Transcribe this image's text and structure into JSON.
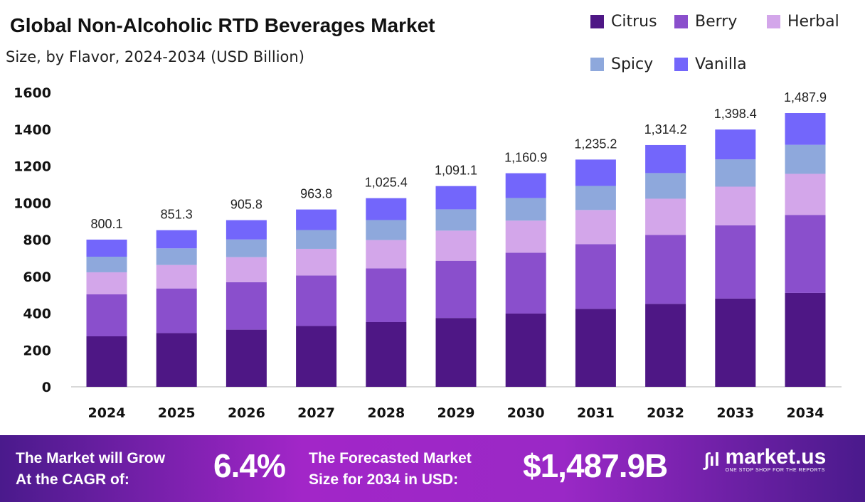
{
  "chart_data": {
    "type": "bar",
    "stacked": true,
    "title": "Global Non-Alcoholic RTD Beverages Market",
    "subtitle": "Size, by Flavor, 2024-2034 (USD Billion)",
    "categories": [
      "2024",
      "2025",
      "2026",
      "2027",
      "2028",
      "2029",
      "2030",
      "2031",
      "2032",
      "2033",
      "2034"
    ],
    "totals": [
      "800.1",
      "851.3",
      "905.8",
      "963.8",
      "1,025.4",
      "1,091.1",
      "1,160.9",
      "1,235.2",
      "1,314.2",
      "1,398.4",
      "1,487.9"
    ],
    "series": [
      {
        "name": "Citrus",
        "color": "#4e1785",
        "values": [
          274.4,
          292.0,
          310.7,
          330.6,
          351.7,
          374.2,
          398.2,
          423.7,
          450.8,
          479.6,
          510.4
        ]
      },
      {
        "name": "Berry",
        "color": "#8a4fcc",
        "values": [
          228.0,
          242.6,
          258.2,
          274.7,
          292.2,
          311.0,
          330.9,
          352.0,
          374.5,
          398.5,
          424.0
        ]
      },
      {
        "name": "Herbal",
        "color": "#d3a6ea",
        "values": [
          120.0,
          127.7,
          135.9,
          144.6,
          153.8,
          163.7,
          174.1,
          185.3,
          197.1,
          209.8,
          223.2
        ]
      },
      {
        "name": "Spicy",
        "color": "#8ea8dc",
        "values": [
          84.8,
          90.2,
          96.0,
          102.2,
          108.7,
          115.7,
          123.1,
          130.9,
          139.3,
          148.2,
          157.7
        ]
      },
      {
        "name": "Vanilla",
        "color": "#7366fb",
        "values": [
          92.9,
          98.8,
          105.0,
          111.7,
          119.0,
          126.5,
          134.6,
          143.3,
          152.5,
          162.3,
          172.6
        ]
      }
    ],
    "yticks": [
      "0",
      "200",
      "400",
      "600",
      "800",
      "1000",
      "1200",
      "1400",
      "1600"
    ],
    "ylim": [
      0,
      1600
    ],
    "grid": false,
    "legend": "top-right",
    "xlabel": "",
    "ylabel": ""
  },
  "banner": {
    "cagr_label_1": "The Market will Grow",
    "cagr_label_2": "At the CAGR of:",
    "cagr_value": "6.4%",
    "forecast_label_1": "The Forecasted Market",
    "forecast_label_2": "Size for 2034 in USD:",
    "forecast_value": "$1,487.9B",
    "logo_text": "market.us",
    "logo_tagline": "ONE STOP SHOP FOR THE REPORTS"
  }
}
